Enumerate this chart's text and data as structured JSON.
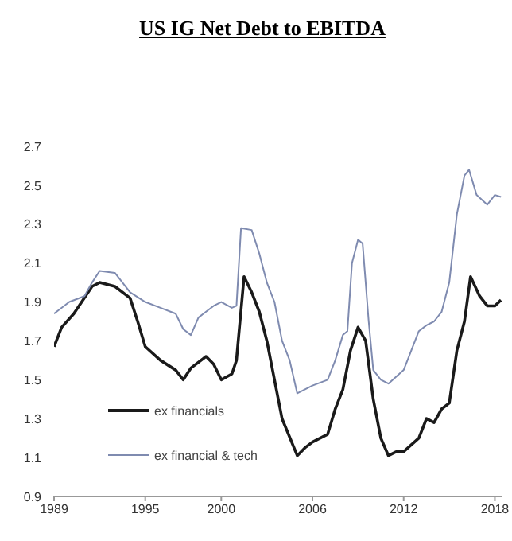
{
  "chart_data": {
    "type": "line",
    "title": "US IG Net Debt to EBITDA",
    "xlim": [
      1989,
      2018.5
    ],
    "xticks": [
      1989,
      1995,
      2000,
      2006,
      2012,
      2018
    ],
    "ylim": [
      0.9,
      2.7
    ],
    "yticks": [
      0.9,
      1.1,
      1.3,
      1.5,
      1.7,
      1.9,
      2.1,
      2.3,
      2.5,
      2.7
    ],
    "grid": false,
    "legend": "bottom left",
    "marker": "none",
    "line_style": "solid",
    "series": [
      {
        "name": "ex financials",
        "color": "#1a1a1a",
        "x": [
          1989,
          1989.5,
          1990.3,
          1991.5,
          1992,
          1993,
          1994,
          1994.5,
          1995,
          1996,
          1997,
          1997.5,
          1998,
          1999,
          1999.5,
          2000,
          2000.7,
          2001,
          2001.5,
          2002,
          2002.5,
          2003,
          2003.5,
          2004,
          2005,
          2005.5,
          2006,
          2007,
          2007.5,
          2008,
          2008.5,
          2009,
          2009.5,
          2010,
          2010.5,
          2011,
          2011.5,
          2012,
          2013,
          2013.5,
          2014,
          2014.5,
          2015,
          2015.5,
          2016,
          2016.4,
          2017,
          2017.5,
          2018,
          2018.4
        ],
        "values": [
          1.67,
          1.77,
          1.84,
          1.98,
          2.0,
          1.98,
          1.92,
          1.8,
          1.67,
          1.6,
          1.55,
          1.5,
          1.56,
          1.62,
          1.58,
          1.5,
          1.53,
          1.6,
          2.03,
          1.95,
          1.85,
          1.7,
          1.5,
          1.3,
          1.11,
          1.15,
          1.18,
          1.22,
          1.35,
          1.45,
          1.65,
          1.77,
          1.7,
          1.4,
          1.2,
          1.11,
          1.13,
          1.13,
          1.2,
          1.3,
          1.28,
          1.35,
          1.38,
          1.65,
          1.8,
          2.03,
          1.93,
          1.88,
          1.88,
          1.91
        ]
      },
      {
        "name": "ex financial & tech",
        "color": "#7f8bb0",
        "x": [
          1989,
          1990,
          1991,
          1991.5,
          1992,
          1993,
          1993.5,
          1994,
          1995,
          1996,
          1997,
          1997.5,
          1998,
          1998.5,
          1999,
          1999.5,
          2000,
          2000.7,
          2001,
          2001.3,
          2002,
          2002.5,
          2003,
          2003.5,
          2004,
          2004.5,
          2005,
          2006,
          2007,
          2007.5,
          2008,
          2008.3,
          2008.6,
          2009,
          2009.3,
          2009.7,
          2010,
          2010.5,
          2011,
          2012,
          2012.5,
          2013,
          2013.5,
          2014,
          2014.5,
          2015,
          2015.5,
          2016,
          2016.3,
          2016.8,
          2017.5,
          2018,
          2018.4
        ],
        "values": [
          1.84,
          1.9,
          1.93,
          2.0,
          2.06,
          2.05,
          2.0,
          1.95,
          1.9,
          1.87,
          1.84,
          1.76,
          1.73,
          1.82,
          1.85,
          1.88,
          1.9,
          1.87,
          1.88,
          2.28,
          2.27,
          2.15,
          2.0,
          1.9,
          1.7,
          1.6,
          1.43,
          1.47,
          1.5,
          1.6,
          1.73,
          1.75,
          2.1,
          2.22,
          2.2,
          1.8,
          1.55,
          1.5,
          1.48,
          1.55,
          1.65,
          1.75,
          1.78,
          1.8,
          1.85,
          2.0,
          2.35,
          2.55,
          2.58,
          2.45,
          2.4,
          2.45,
          2.44
        ]
      }
    ]
  }
}
